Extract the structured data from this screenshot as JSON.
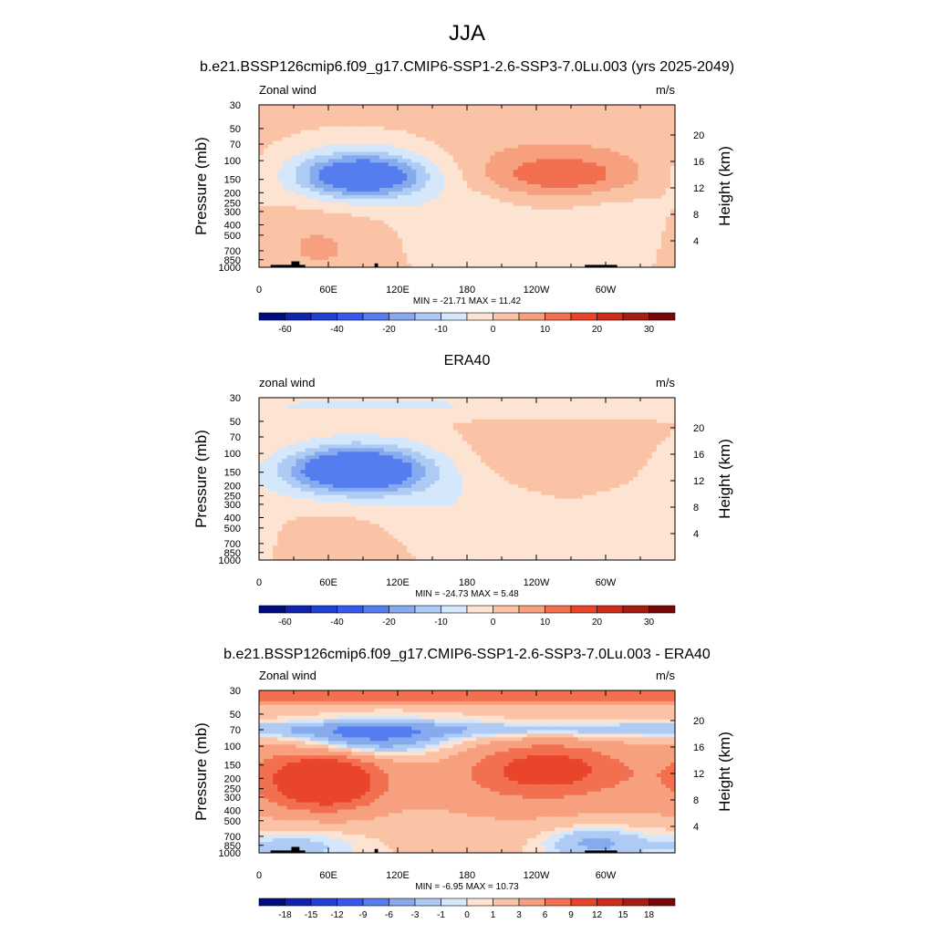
{
  "figure": {
    "title": "JJA",
    "colormap_positive": [
      "#fde4d2",
      "#fbc3a6",
      "#f7a07f",
      "#f26f4f",
      "#e8452a",
      "#cf2c1c",
      "#a51d12",
      "#7a0707"
    ],
    "colormap_negative": [
      "#d5e7fb",
      "#aecbf5",
      "#86aaee",
      "#557df0",
      "#3759ee",
      "#2040d6",
      "#0f23ad",
      "#000b82"
    ]
  },
  "chart_data": [
    {
      "type": "heatmap",
      "subtitle": "b.e21.BSSP126cmip6.f09_g17.CMIP6-SSP1-2.6-SSP3-7.0Lu.003 (yrs 2025-2049)",
      "left_label": "Zonal wind",
      "right_label": "m/s",
      "ylabel": "Pressure (mb)",
      "y2label": "Height (km)",
      "x_ticks": [
        "0",
        "60E",
        "120E",
        "180",
        "120W",
        "60W"
      ],
      "y_ticks": [
        "30",
        "50",
        "70",
        "100",
        "150",
        "200",
        "250",
        "300",
        "400",
        "500",
        "700",
        "850",
        "1000"
      ],
      "y2_ticks": [
        "20",
        "16",
        "12",
        "8",
        "4"
      ],
      "stats": "MIN = -21.71  MAX =  11.42",
      "min": -21.71,
      "max": 11.42,
      "colorbar_levels": [
        -70,
        -60,
        -50,
        -40,
        -30,
        -20,
        -15,
        -10,
        -5,
        0,
        5,
        10,
        15,
        20,
        25,
        30,
        35
      ],
      "colorbar_labels": [
        "-60",
        "-40",
        "-20",
        "-10",
        "0",
        "10",
        "20",
        "30"
      ],
      "features": [
        {
          "lon": 90,
          "p": 140,
          "value": -21.7,
          "sx": 35,
          "sy": 0.3
        },
        {
          "lon": 90,
          "p": 130,
          "value": -10,
          "sx": 60,
          "sy": 0.55
        },
        {
          "lon": 265,
          "p": 140,
          "value": 11.4,
          "sx": 45,
          "sy": 0.3
        },
        {
          "lon": 230,
          "p": 120,
          "value": 7,
          "sx": 90,
          "sy": 0.55
        },
        {
          "lon": 50,
          "p": 600,
          "value": 6,
          "sx": 50,
          "sy": 0.6
        },
        {
          "lon": 185,
          "p": 500,
          "value": -5,
          "sx": 50,
          "sy": 0.8
        },
        {
          "lon": 310,
          "p": 500,
          "value": -4,
          "sx": 40,
          "sy": 0.8
        }
      ],
      "background": 2,
      "terrain": [
        {
          "lon_from": 10,
          "lon_to": 40,
          "p_top": 950
        },
        {
          "lon_from": 28,
          "lon_to": 35,
          "p_top": 880
        },
        {
          "lon_from": 100,
          "lon_to": 103,
          "p_top": 920
        },
        {
          "lon_from": 282,
          "lon_to": 310,
          "p_top": 950
        }
      ]
    },
    {
      "type": "heatmap",
      "subtitle": "ERA40",
      "left_label": "zonal wind",
      "right_label": "m/s",
      "ylabel": "Pressure (mb)",
      "y2label": "Height (km)",
      "x_ticks": [
        "0",
        "60E",
        "120E",
        "180",
        "120W",
        "60W"
      ],
      "y_ticks": [
        "30",
        "50",
        "70",
        "100",
        "150",
        "200",
        "250",
        "300",
        "400",
        "500",
        "700",
        "850",
        "1000"
      ],
      "y2_ticks": [
        "20",
        "16",
        "12",
        "8",
        "4"
      ],
      "stats": "MIN = -24.73  MAX =   5.48",
      "min": -24.73,
      "max": 5.48,
      "colorbar_levels": [
        -70,
        -60,
        -50,
        -40,
        -30,
        -20,
        -15,
        -10,
        -5,
        0,
        5,
        10,
        15,
        20,
        25,
        30,
        35
      ],
      "colorbar_labels": [
        "-60",
        "-40",
        "-20",
        "-10",
        "0",
        "10",
        "20",
        "30"
      ],
      "features": [
        {
          "lon": 85,
          "p": 145,
          "value": -24.7,
          "sx": 38,
          "sy": 0.3
        },
        {
          "lon": 85,
          "p": 140,
          "value": -12,
          "sx": 60,
          "sy": 0.55
        },
        {
          "lon": 180,
          "p": 35,
          "value": -5,
          "sx": 600,
          "sy": 0.18
        },
        {
          "lon": 260,
          "p": 120,
          "value": 5.4,
          "sx": 70,
          "sy": 0.5
        },
        {
          "lon": 60,
          "p": 650,
          "value": 4,
          "sx": 45,
          "sy": 0.6
        },
        {
          "lon": 185,
          "p": 400,
          "value": -4,
          "sx": 55,
          "sy": 0.7
        },
        {
          "lon": 330,
          "p": 600,
          "value": -4,
          "sx": 40,
          "sy": 0.8
        }
      ],
      "background": 1,
      "terrain": []
    },
    {
      "type": "heatmap",
      "subtitle": "b.e21.BSSP126cmip6.f09_g17.CMIP6-SSP1-2.6-SSP3-7.0Lu.003 - ERA40",
      "left_label": "Zonal wind",
      "right_label": "m/s",
      "ylabel": "Pressure (mb)",
      "y2label": "Height (km)",
      "x_ticks": [
        "0",
        "60E",
        "120E",
        "180",
        "120W",
        "60W"
      ],
      "y_ticks": [
        "30",
        "50",
        "70",
        "100",
        "150",
        "200",
        "250",
        "300",
        "400",
        "500",
        "700",
        "850",
        "1000"
      ],
      "y2_ticks": [
        "20",
        "16",
        "12",
        "8",
        "4"
      ],
      "stats": "MIN =  -6.95  MAX =  10.73",
      "min": -6.95,
      "max": 10.73,
      "colorbar_levels": [
        -21,
        -18,
        -15,
        -12,
        -9,
        -6,
        -3,
        -1,
        0,
        1,
        3,
        6,
        9,
        12,
        15,
        18,
        21
      ],
      "colorbar_labels": [
        "-18",
        "-15",
        "-12",
        "-9",
        "-6",
        "-3",
        "-1",
        "0",
        "1",
        "3",
        "6",
        "9",
        "12",
        "15",
        "18"
      ],
      "features": [
        {
          "lon": 180,
          "p": 33,
          "value": 9,
          "sx": 800,
          "sy": 0.12
        },
        {
          "lon": 180,
          "p": 70,
          "value": -3,
          "sx": 800,
          "sy": 0.12
        },
        {
          "lon": 95,
          "p": 85,
          "value": -6.9,
          "sx": 45,
          "sy": 0.25
        },
        {
          "lon": 60,
          "p": 220,
          "value": 10.7,
          "sx": 30,
          "sy": 0.4
        },
        {
          "lon": 40,
          "p": 180,
          "value": 6,
          "sx": 45,
          "sy": 0.6
        },
        {
          "lon": 250,
          "p": 160,
          "value": 9,
          "sx": 45,
          "sy": 0.4
        },
        {
          "lon": 230,
          "p": 250,
          "value": 4,
          "sx": 100,
          "sy": 0.7
        },
        {
          "lon": 290,
          "p": 800,
          "value": -4,
          "sx": 30,
          "sy": 0.25
        },
        {
          "lon": 30,
          "p": 850,
          "value": -2,
          "sx": 40,
          "sy": 0.25
        }
      ],
      "background": 1,
      "terrain": [
        {
          "lon_from": 10,
          "lon_to": 40,
          "p_top": 950
        },
        {
          "lon_from": 28,
          "lon_to": 35,
          "p_top": 880
        },
        {
          "lon_from": 100,
          "lon_to": 103,
          "p_top": 920
        },
        {
          "lon_from": 282,
          "lon_to": 310,
          "p_top": 950
        }
      ]
    }
  ]
}
